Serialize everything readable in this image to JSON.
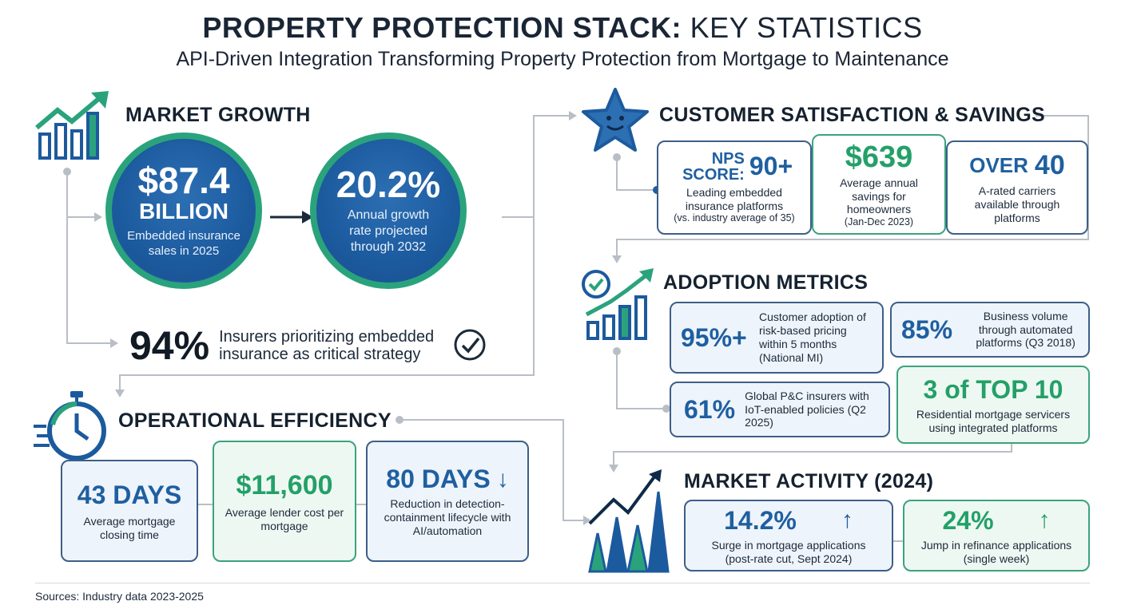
{
  "title": {
    "bold": "PROPERTY PROTECTION STACK:",
    "light": "KEY STATISTICS"
  },
  "subtitle": "API-Driven Integration Transforming Property Protection from Mortgage to Maintenance",
  "market_growth": {
    "heading": "MARKET GROWTH",
    "circle1": {
      "value": "$87.4",
      "unit": "BILLION",
      "desc": "Embedded insurance sales in 2025"
    },
    "circle2": {
      "value": "20.2%",
      "desc": "Annual growth rate projected through 2032"
    },
    "stat": {
      "value": "94%",
      "desc": "Insurers prioritizing embedded insurance as critical strategy"
    }
  },
  "operational": {
    "heading": "OPERATIONAL EFFICIENCY",
    "cards": [
      {
        "value": "43 DAYS",
        "desc": "Average mortgage closing time"
      },
      {
        "value": "$11,600",
        "desc": "Average lender cost per mortgage"
      },
      {
        "value": "80 DAYS",
        "arrow": "↓",
        "desc": "Reduction in detection-containment lifecycle with AI/automation"
      }
    ]
  },
  "satisfaction": {
    "heading": "CUSTOMER SATISFACTION & SAVINGS",
    "cards": [
      {
        "label": "NPS SCORE:",
        "value": "90+",
        "desc": "Leading embedded insurance platforms",
        "note": "(vs. industry average of 35)"
      },
      {
        "value": "$639",
        "desc": "Average annual savings for homeowners",
        "note": "(Jan-Dec 2023)"
      },
      {
        "label": "OVER",
        "value": "40",
        "desc": "A-rated carriers available through platforms"
      }
    ]
  },
  "adoption": {
    "heading": "ADOPTION METRICS",
    "cards": [
      {
        "value": "95%+",
        "desc": "Customer adoption of risk-based pricing within 5 months (National MI)"
      },
      {
        "value": "85%",
        "desc": "Business volume through automated platforms (Q3 2018)"
      },
      {
        "value": "61%",
        "desc": "Global P&C insurers with IoT-enabled policies (Q2 2025)"
      },
      {
        "value": "3 of TOP 10",
        "desc": "Residential mortgage servicers using integrated platforms"
      }
    ]
  },
  "activity": {
    "heading": "MARKET ACTIVITY (2024)",
    "cards": [
      {
        "value": "14.2%",
        "arrow": "↑",
        "desc": "Surge in mortgage applications (post-rate cut, Sept 2024)"
      },
      {
        "value": "24%",
        "arrow": "↑",
        "desc": "Jump in refinance applications (single week)"
      }
    ]
  },
  "sources": "Sources: Industry data 2023-2025",
  "colors": {
    "navy": "#1c5a9e",
    "green": "#2aa37d",
    "text": "#1b2a3a",
    "connector": "#b9bec6"
  }
}
